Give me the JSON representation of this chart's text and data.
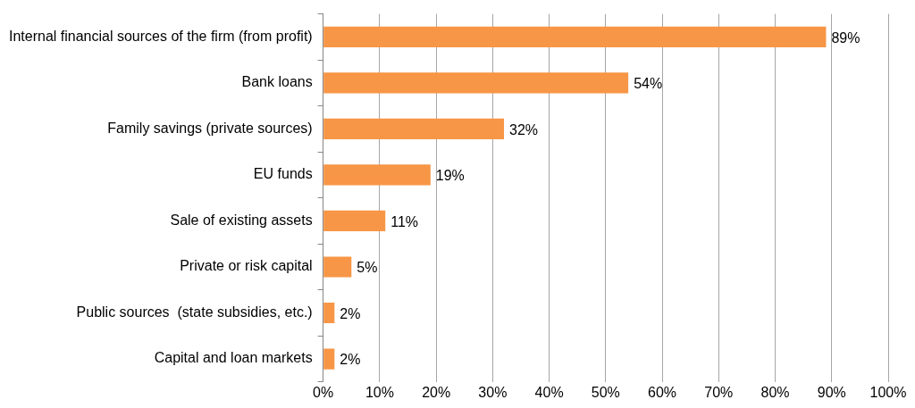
{
  "chart_data": {
    "type": "bar",
    "orientation": "horizontal",
    "categories": [
      "Internal financial sources of the firm (from profit)",
      "Bank loans",
      "Family savings (private sources)",
      "EU funds",
      "Sale of existing assets",
      "Private or risk capital",
      "Public sources  (state subsidies, etc.)",
      "Capital and loan markets"
    ],
    "values": [
      89,
      54,
      32,
      19,
      11,
      5,
      2,
      2
    ],
    "value_labels": [
      "89%",
      "54%",
      "32%",
      "19%",
      "11%",
      "5%",
      "2%",
      "2%"
    ],
    "color": "#f79646",
    "xlim": [
      0,
      100
    ],
    "xticks": [
      {
        "value": 0,
        "label": "0%"
      },
      {
        "value": 10,
        "label": "10%"
      },
      {
        "value": 20,
        "label": "20%"
      },
      {
        "value": 30,
        "label": "30%"
      },
      {
        "value": 40,
        "label": "40%"
      },
      {
        "value": 50,
        "label": "50%"
      },
      {
        "value": 60,
        "label": "60%"
      },
      {
        "value": 70,
        "label": "70%"
      },
      {
        "value": 80,
        "label": "80%"
      },
      {
        "value": 90,
        "label": "90%"
      },
      {
        "value": 100,
        "label": "100%"
      }
    ],
    "grid": "x",
    "legend": false
  }
}
